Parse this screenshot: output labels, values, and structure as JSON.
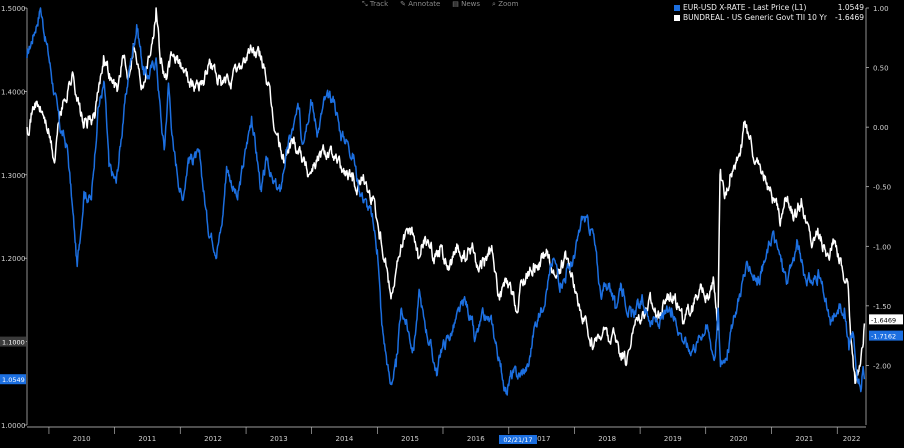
{
  "toolbar": {
    "items": [
      "Track",
      "Annotate",
      "News",
      "Zoom"
    ]
  },
  "colors": {
    "background": "#000000",
    "eurusd": "#1c6fe0",
    "bund": "#ffffff",
    "axis": "#cfcfcf"
  },
  "chart_data": {
    "type": "line",
    "x_ticks": [
      "2010",
      "2011",
      "2012",
      "2013",
      "2014",
      "2015",
      "2016",
      "2017",
      "2018",
      "2019",
      "2020",
      "2021",
      "2022"
    ],
    "x_date_label": "02/21/17",
    "xlim": [
      "2009-09-01",
      "2022-06-10"
    ],
    "y_left": {
      "ticks": [
        "1.0000",
        "1.1000",
        "1.2000",
        "1.3000",
        "1.4000",
        "1.5000"
      ],
      "range": [
        1.0,
        1.5
      ]
    },
    "y_right": {
      "ticks": [
        "1.00",
        "0.50",
        "0.00",
        "-0.50",
        "-1.00",
        "-1.50",
        "-2.00"
      ],
      "range": [
        -2.5,
        1.0
      ],
      "inverted": true
    },
    "left_markers": [
      "1.1000",
      "1.0549"
    ],
    "right_markers": [
      "-1.6469",
      "-1.7162"
    ],
    "series": [
      {
        "name": "EUR-USD X-RATE - Last Price (L1)",
        "last": "1.0549",
        "color": "#1c6fe0",
        "axis": "left",
        "points": [
          [
            "2009-09-01",
            1.44
          ],
          [
            "2009-11-15",
            1.5
          ],
          [
            "2010-01-01",
            1.44
          ],
          [
            "2010-03-01",
            1.36
          ],
          [
            "2010-04-15",
            1.33
          ],
          [
            "2010-06-07",
            1.19
          ],
          [
            "2010-07-15",
            1.28
          ],
          [
            "2010-08-25",
            1.27
          ],
          [
            "2010-10-01",
            1.38
          ],
          [
            "2010-11-05",
            1.41
          ],
          [
            "2010-12-01",
            1.31
          ],
          [
            "2011-01-10",
            1.29
          ],
          [
            "2011-02-15",
            1.36
          ],
          [
            "2011-03-20",
            1.42
          ],
          [
            "2011-05-04",
            1.48
          ],
          [
            "2011-06-15",
            1.42
          ],
          [
            "2011-07-15",
            1.42
          ],
          [
            "2011-08-20",
            1.44
          ],
          [
            "2011-09-15",
            1.37
          ],
          [
            "2011-10-04",
            1.33
          ],
          [
            "2011-10-28",
            1.41
          ],
          [
            "2011-11-25",
            1.33
          ],
          [
            "2012-01-12",
            1.27
          ],
          [
            "2012-02-15",
            1.32
          ],
          [
            "2012-03-15",
            1.32
          ],
          [
            "2012-04-20",
            1.32
          ],
          [
            "2012-06-01",
            1.24
          ],
          [
            "2012-07-24",
            1.21
          ],
          [
            "2012-08-20",
            1.24
          ],
          [
            "2012-09-15",
            1.31
          ],
          [
            "2012-11-15",
            1.27
          ],
          [
            "2012-12-15",
            1.31
          ],
          [
            "2013-02-01",
            1.37
          ],
          [
            "2013-03-27",
            1.28
          ],
          [
            "2013-05-01",
            1.32
          ],
          [
            "2013-05-30",
            1.29
          ],
          [
            "2013-07-09",
            1.28
          ],
          [
            "2013-08-15",
            1.33
          ],
          [
            "2013-10-25",
            1.38
          ],
          [
            "2013-11-07",
            1.34
          ],
          [
            "2013-12-27",
            1.39
          ],
          [
            "2014-02-03",
            1.35
          ],
          [
            "2014-03-15",
            1.39
          ],
          [
            "2014-05-06",
            1.39
          ],
          [
            "2014-06-10",
            1.35
          ],
          [
            "2014-07-20",
            1.34
          ],
          [
            "2014-08-25",
            1.32
          ],
          [
            "2014-09-15",
            1.29
          ],
          [
            "2014-10-20",
            1.27
          ],
          [
            "2014-12-01",
            1.25
          ],
          [
            "2015-01-01",
            1.21
          ],
          [
            "2015-01-26",
            1.12
          ],
          [
            "2015-03-13",
            1.05
          ],
          [
            "2015-04-15",
            1.07
          ],
          [
            "2015-05-15",
            1.14
          ],
          [
            "2015-06-15",
            1.12
          ],
          [
            "2015-07-20",
            1.09
          ],
          [
            "2015-08-24",
            1.16
          ],
          [
            "2015-09-15",
            1.13
          ],
          [
            "2015-11-30",
            1.06
          ],
          [
            "2015-12-20",
            1.09
          ],
          [
            "2016-02-15",
            1.11
          ],
          [
            "2016-05-03",
            1.15
          ],
          [
            "2016-06-15",
            1.12
          ],
          [
            "2016-06-25",
            1.1
          ],
          [
            "2016-08-15",
            1.13
          ],
          [
            "2016-10-01",
            1.12
          ],
          [
            "2016-11-15",
            1.07
          ],
          [
            "2016-12-20",
            1.04
          ],
          [
            "2017-01-15",
            1.06
          ],
          [
            "2017-03-01",
            1.06
          ],
          [
            "2017-04-20",
            1.07
          ],
          [
            "2017-05-25",
            1.12
          ],
          [
            "2017-07-01",
            1.14
          ],
          [
            "2017-08-15",
            1.18
          ],
          [
            "2017-09-08",
            1.2
          ],
          [
            "2017-10-15",
            1.17
          ],
          [
            "2017-11-15",
            1.18
          ],
          [
            "2018-01-01",
            1.2
          ],
          [
            "2018-02-15",
            1.25
          ],
          [
            "2018-04-15",
            1.23
          ],
          [
            "2018-05-25",
            1.16
          ],
          [
            "2018-07-15",
            1.17
          ],
          [
            "2018-08-15",
            1.14
          ],
          [
            "2018-09-15",
            1.17
          ],
          [
            "2018-11-13",
            1.13
          ],
          [
            "2019-01-15",
            1.15
          ],
          [
            "2019-02-15",
            1.13
          ],
          [
            "2019-04-15",
            1.12
          ],
          [
            "2019-06-25",
            1.14
          ],
          [
            "2019-08-15",
            1.11
          ],
          [
            "2019-10-01",
            1.09
          ],
          [
            "2019-11-15",
            1.1
          ],
          [
            "2020-01-01",
            1.12
          ],
          [
            "2020-02-20",
            1.08
          ],
          [
            "2020-03-10",
            1.14
          ],
          [
            "2020-03-23",
            1.07
          ],
          [
            "2020-05-01",
            1.09
          ],
          [
            "2020-06-10",
            1.13
          ],
          [
            "2020-07-31",
            1.18
          ],
          [
            "2020-09-01",
            1.19
          ],
          [
            "2020-10-15",
            1.17
          ],
          [
            "2020-12-01",
            1.2
          ],
          [
            "2021-01-06",
            1.23
          ],
          [
            "2021-03-31",
            1.17
          ],
          [
            "2021-05-25",
            1.22
          ],
          [
            "2021-07-01",
            1.18
          ],
          [
            "2021-08-20",
            1.17
          ],
          [
            "2021-09-15",
            1.18
          ],
          [
            "2021-10-15",
            1.16
          ],
          [
            "2021-11-24",
            1.12
          ],
          [
            "2021-12-20",
            1.13
          ],
          [
            "2022-01-15",
            1.14
          ],
          [
            "2022-02-10",
            1.14
          ],
          [
            "2022-03-07",
            1.09
          ],
          [
            "2022-03-31",
            1.11
          ],
          [
            "2022-04-28",
            1.05
          ],
          [
            "2022-05-12",
            1.04
          ],
          [
            "2022-05-25",
            1.07
          ],
          [
            "2022-06-01",
            1.0549
          ]
        ]
      },
      {
        "name": "BUNDREAL - US Generic Govt TII 10 Yr (R1)",
        "last": "-1.6469",
        "color": "#ffffff",
        "axis": "right",
        "points": [
          [
            "2009-09-01",
            0.0
          ],
          [
            "2009-10-15",
            0.2
          ],
          [
            "2009-12-01",
            0.1
          ],
          [
            "2010-01-01",
            -0.05
          ],
          [
            "2010-02-01",
            -0.3
          ],
          [
            "2010-03-01",
            0.1
          ],
          [
            "2010-04-15",
            0.3
          ],
          [
            "2010-05-15",
            0.45
          ],
          [
            "2010-06-15",
            0.2
          ],
          [
            "2010-07-15",
            0.0
          ],
          [
            "2010-09-15",
            0.1
          ],
          [
            "2010-11-01",
            0.6
          ],
          [
            "2010-12-15",
            0.4
          ],
          [
            "2011-01-15",
            0.3
          ],
          [
            "2011-02-15",
            0.6
          ],
          [
            "2011-03-15",
            0.4
          ],
          [
            "2011-04-15",
            0.7
          ],
          [
            "2011-06-01",
            0.35
          ],
          [
            "2011-08-01",
            0.75
          ],
          [
            "2011-08-20",
            1.0
          ],
          [
            "2011-09-15",
            0.55
          ],
          [
            "2011-10-15",
            0.4
          ],
          [
            "2011-11-20",
            0.6
          ],
          [
            "2012-01-15",
            0.5
          ],
          [
            "2012-03-15",
            0.35
          ],
          [
            "2012-05-15",
            0.4
          ],
          [
            "2012-06-15",
            0.55
          ],
          [
            "2012-08-15",
            0.35
          ],
          [
            "2012-10-15",
            0.4
          ],
          [
            "2012-12-15",
            0.55
          ],
          [
            "2013-02-01",
            0.65
          ],
          [
            "2013-03-15",
            0.6
          ],
          [
            "2013-04-15",
            0.5
          ],
          [
            "2013-05-01",
            0.35
          ],
          [
            "2013-06-01",
            0.05
          ],
          [
            "2013-07-15",
            -0.2
          ],
          [
            "2013-08-01",
            -0.3
          ],
          [
            "2013-09-15",
            -0.1
          ],
          [
            "2013-11-01",
            -0.2
          ],
          [
            "2013-12-15",
            -0.4
          ],
          [
            "2014-01-15",
            -0.3
          ],
          [
            "2014-03-15",
            -0.2
          ],
          [
            "2014-05-01",
            -0.25
          ],
          [
            "2014-06-15",
            -0.35
          ],
          [
            "2014-08-15",
            -0.45
          ],
          [
            "2014-09-15",
            -0.5
          ],
          [
            "2014-10-15",
            -0.4
          ],
          [
            "2014-11-15",
            -0.55
          ],
          [
            "2014-12-15",
            -0.6
          ],
          [
            "2015-01-15",
            -0.9
          ],
          [
            "2015-02-15",
            -1.1
          ],
          [
            "2015-03-15",
            -1.4
          ],
          [
            "2015-04-15",
            -1.2
          ],
          [
            "2015-05-15",
            -1.0
          ],
          [
            "2015-06-15",
            -0.85
          ],
          [
            "2015-07-15",
            -0.9
          ],
          [
            "2015-08-15",
            -1.1
          ],
          [
            "2015-09-15",
            -0.95
          ],
          [
            "2015-10-15",
            -1.0
          ],
          [
            "2015-11-15",
            -1.1
          ],
          [
            "2015-12-15",
            -1.0
          ],
          [
            "2016-02-01",
            -1.2
          ],
          [
            "2016-03-15",
            -1.05
          ],
          [
            "2016-05-01",
            -1.1
          ],
          [
            "2016-06-15",
            -1.0
          ],
          [
            "2016-07-15",
            -1.2
          ],
          [
            "2016-08-15",
            -1.1
          ],
          [
            "2016-10-01",
            -1.05
          ],
          [
            "2016-11-10",
            -1.45
          ],
          [
            "2016-12-15",
            -1.3
          ],
          [
            "2017-01-15",
            -1.4
          ],
          [
            "2017-02-21",
            -1.55
          ],
          [
            "2017-03-15",
            -1.3
          ],
          [
            "2017-05-01",
            -1.2
          ],
          [
            "2017-06-15",
            -1.15
          ],
          [
            "2017-08-01",
            -1.05
          ],
          [
            "2017-09-15",
            -1.25
          ],
          [
            "2017-11-15",
            -1.1
          ],
          [
            "2018-01-15",
            -1.4
          ],
          [
            "2018-02-15",
            -1.65
          ],
          [
            "2018-03-15",
            -1.7
          ],
          [
            "2018-04-15",
            -1.85
          ],
          [
            "2018-05-15",
            -1.75
          ],
          [
            "2018-06-15",
            -1.7
          ],
          [
            "2018-07-15",
            -1.8
          ],
          [
            "2018-08-15",
            -1.75
          ],
          [
            "2018-09-15",
            -1.9
          ],
          [
            "2018-10-15",
            -2.0
          ],
          [
            "2018-11-15",
            -1.75
          ],
          [
            "2018-12-15",
            -1.6
          ],
          [
            "2019-01-15",
            -1.55
          ],
          [
            "2019-03-01",
            -1.45
          ],
          [
            "2019-04-15",
            -1.6
          ],
          [
            "2019-06-01",
            -1.4
          ],
          [
            "2019-07-15",
            -1.4
          ],
          [
            "2019-09-01",
            -1.65
          ],
          [
            "2019-10-15",
            -1.5
          ],
          [
            "2019-11-15",
            -1.45
          ],
          [
            "2019-12-15",
            -1.35
          ],
          [
            "2020-01-15",
            -1.45
          ],
          [
            "2020-02-15",
            -1.3
          ],
          [
            "2020-03-09",
            -1.7
          ],
          [
            "2020-03-20",
            -0.4
          ],
          [
            "2020-04-15",
            -0.6
          ],
          [
            "2020-05-15",
            -0.4
          ],
          [
            "2020-06-15",
            -0.3
          ],
          [
            "2020-07-15",
            -0.15
          ],
          [
            "2020-08-06",
            0.05
          ],
          [
            "2020-09-15",
            -0.2
          ],
          [
            "2020-10-15",
            -0.3
          ],
          [
            "2020-11-15",
            -0.4
          ],
          [
            "2020-12-15",
            -0.5
          ],
          [
            "2021-01-15",
            -0.6
          ],
          [
            "2021-02-15",
            -0.8
          ],
          [
            "2021-03-15",
            -0.6
          ],
          [
            "2021-04-15",
            -0.7
          ],
          [
            "2021-05-15",
            -0.75
          ],
          [
            "2021-06-15",
            -0.6
          ],
          [
            "2021-07-15",
            -0.8
          ],
          [
            "2021-08-15",
            -1.0
          ],
          [
            "2021-09-15",
            -0.85
          ],
          [
            "2021-10-15",
            -1.0
          ],
          [
            "2021-11-15",
            -1.1
          ],
          [
            "2021-12-15",
            -0.95
          ],
          [
            "2022-01-15",
            -1.1
          ],
          [
            "2022-02-15",
            -1.3
          ],
          [
            "2022-03-01",
            -1.3
          ],
          [
            "2022-03-20",
            -1.8
          ],
          [
            "2022-04-10",
            -2.15
          ],
          [
            "2022-05-01",
            -2.05
          ],
          [
            "2022-05-20",
            -1.85
          ],
          [
            "2022-06-01",
            -1.6469
          ]
        ]
      }
    ]
  }
}
